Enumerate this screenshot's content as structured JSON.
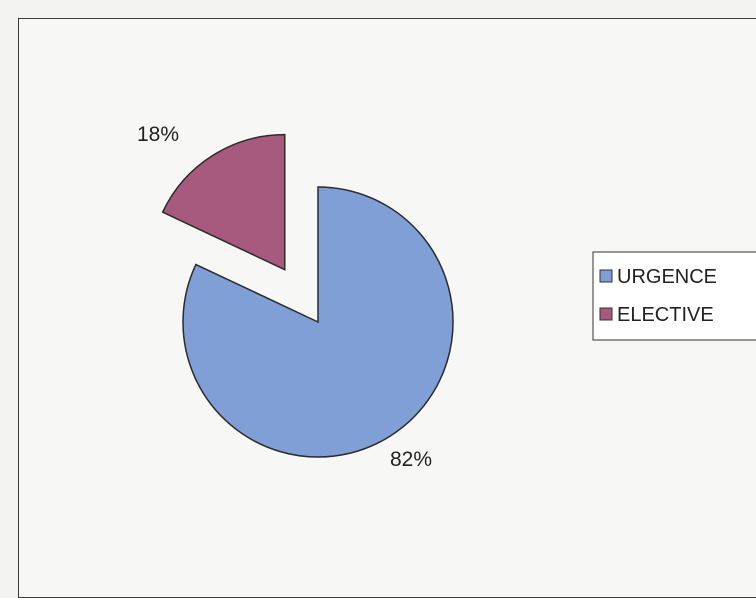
{
  "chart_data": {
    "type": "pie",
    "exploded": [
      "ELECTIVE"
    ],
    "legend_position": "right",
    "slices": [
      {
        "label": "URGENCE",
        "value": 82,
        "display": "82%",
        "color": "#7f9fd6"
      },
      {
        "label": "ELECTIVE",
        "value": 18,
        "display": "18%",
        "color": "#a85a7e"
      }
    ],
    "legend": [
      "URGENCE",
      "ELECTIVE"
    ]
  }
}
